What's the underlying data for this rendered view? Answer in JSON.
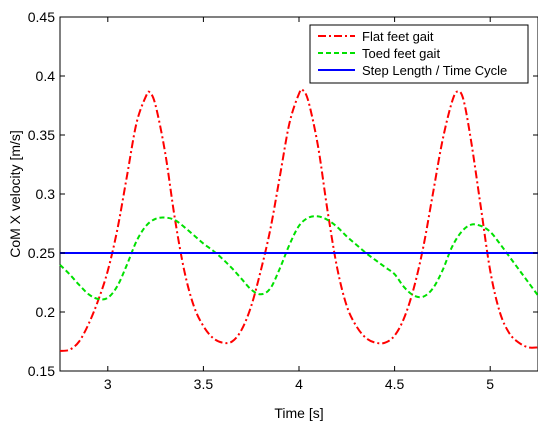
{
  "chart_data": {
    "type": "line",
    "xlabel": "Time [s]",
    "ylabel": "CoM X velocity [m/s]",
    "xlim": [
      2.75,
      5.25
    ],
    "ylim": [
      0.15,
      0.45
    ],
    "xticks": [
      3,
      3.5,
      4,
      4.5,
      5
    ],
    "yticks": [
      0.15,
      0.2,
      0.25,
      0.3,
      0.35,
      0.4,
      0.45
    ],
    "xtick_labels": [
      "3",
      "3.5",
      "4",
      "4.5",
      "5"
    ],
    "ytick_labels": [
      "0.15",
      "0.2",
      "0.25",
      "0.3",
      "0.35",
      "0.4",
      "0.45"
    ],
    "grid": false,
    "legend_position": "top-right",
    "series": [
      {
        "name": "Flat feet gait",
        "color": "#ff0000",
        "style": "dashdot",
        "x": [
          2.75,
          2.8,
          2.85,
          2.9,
          2.95,
          3.0,
          3.05,
          3.1,
          3.15,
          3.2,
          3.22,
          3.25,
          3.3,
          3.35,
          3.4,
          3.45,
          3.5,
          3.55,
          3.6,
          3.65,
          3.7,
          3.75,
          3.8,
          3.85,
          3.9,
          3.95,
          4.0,
          4.02,
          4.05,
          4.1,
          4.15,
          4.2,
          4.25,
          4.3,
          4.35,
          4.4,
          4.45,
          4.5,
          4.55,
          4.6,
          4.65,
          4.7,
          4.75,
          4.8,
          4.83,
          4.86,
          4.9,
          4.95,
          5.0,
          5.05,
          5.1,
          5.15,
          5.2,
          5.25
        ],
        "y": [
          0.167,
          0.168,
          0.175,
          0.19,
          0.21,
          0.235,
          0.27,
          0.315,
          0.36,
          0.383,
          0.386,
          0.375,
          0.335,
          0.28,
          0.235,
          0.205,
          0.188,
          0.178,
          0.174,
          0.175,
          0.185,
          0.205,
          0.235,
          0.27,
          0.315,
          0.36,
          0.385,
          0.388,
          0.378,
          0.34,
          0.285,
          0.237,
          0.205,
          0.188,
          0.178,
          0.174,
          0.174,
          0.18,
          0.195,
          0.22,
          0.255,
          0.3,
          0.345,
          0.378,
          0.387,
          0.38,
          0.345,
          0.29,
          0.235,
          0.2,
          0.182,
          0.174,
          0.17,
          0.17
        ]
      },
      {
        "name": "Toed feet gait",
        "color": "#00e000",
        "style": "dashed",
        "x": [
          2.75,
          2.8,
          2.85,
          2.9,
          2.95,
          3.0,
          3.05,
          3.1,
          3.15,
          3.2,
          3.25,
          3.3,
          3.35,
          3.4,
          3.45,
          3.5,
          3.55,
          3.6,
          3.65,
          3.7,
          3.75,
          3.8,
          3.85,
          3.9,
          3.95,
          4.0,
          4.05,
          4.1,
          4.15,
          4.2,
          4.25,
          4.3,
          4.35,
          4.4,
          4.45,
          4.5,
          4.55,
          4.6,
          4.65,
          4.7,
          4.75,
          4.8,
          4.85,
          4.9,
          4.95,
          5.0,
          5.05,
          5.1,
          5.15,
          5.2,
          5.25
        ],
        "y": [
          0.24,
          0.232,
          0.223,
          0.215,
          0.211,
          0.212,
          0.222,
          0.24,
          0.26,
          0.273,
          0.279,
          0.28,
          0.278,
          0.272,
          0.265,
          0.258,
          0.252,
          0.245,
          0.237,
          0.228,
          0.219,
          0.215,
          0.22,
          0.237,
          0.257,
          0.273,
          0.28,
          0.281,
          0.278,
          0.272,
          0.264,
          0.257,
          0.25,
          0.244,
          0.238,
          0.232,
          0.221,
          0.214,
          0.213,
          0.22,
          0.235,
          0.255,
          0.268,
          0.274,
          0.273,
          0.268,
          0.258,
          0.247,
          0.236,
          0.225,
          0.214
        ]
      },
      {
        "name": "Step Length / Time Cycle",
        "color": "#0000ff",
        "style": "solid",
        "x": [
          2.75,
          5.25
        ],
        "y": [
          0.25,
          0.25
        ]
      }
    ]
  }
}
